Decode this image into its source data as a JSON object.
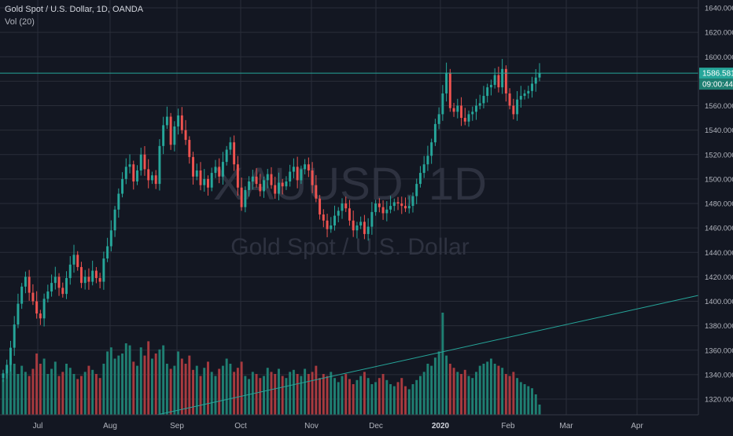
{
  "header": {
    "title": "Gold Spot / U.S. Dollar, 1D, OANDA",
    "indicator": "Vol (20)"
  },
  "watermark": {
    "symbol": "XAUUSD, 1D",
    "name": "Gold Spot / U.S. Dollar"
  },
  "price_axis": {
    "ticks": [
      "1640.000",
      "1620.000",
      "1600.000",
      "1580.000",
      "1560.000",
      "1540.000",
      "1520.000",
      "1500.000",
      "1480.000",
      "1460.000",
      "1440.000",
      "1420.000",
      "1400.000",
      "1380.000",
      "1360.000",
      "1340.000",
      "1320.000"
    ],
    "last_price": "1586.581",
    "countdown": "09:00:44"
  },
  "colors": {
    "background": "#131722",
    "up": "#26a69a",
    "down": "#ef5350",
    "up_volume": "#1f7f72",
    "down_volume": "#a83a3f",
    "grid": "#2a2e39",
    "price_line": "#26a69a",
    "trend_line": "#26a69a"
  },
  "chart_data": {
    "type": "candlestick",
    "title": "Gold Spot / U.S. Dollar, 1D, OANDA",
    "symbol": "XAUUSD",
    "interval": "1D",
    "ylim": [
      1310,
      1650
    ],
    "x_labels": [
      "Jul",
      "Aug",
      "Sep",
      "Oct",
      "Nov",
      "Dec",
      "2020",
      "Feb",
      "Mar",
      "Apr"
    ],
    "last_price": 1586.581,
    "grid": true,
    "candles_close": [
      1341,
      1348,
      1362,
      1381,
      1398,
      1412,
      1420,
      1407,
      1400,
      1390,
      1386,
      1402,
      1408,
      1415,
      1420,
      1411,
      1406,
      1419,
      1430,
      1438,
      1428,
      1415,
      1420,
      1416,
      1425,
      1419,
      1416,
      1435,
      1445,
      1458,
      1475,
      1488,
      1500,
      1510,
      1512,
      1498,
      1507,
      1520,
      1508,
      1499,
      1503,
      1496,
      1527,
      1544,
      1551,
      1528,
      1543,
      1552,
      1540,
      1532,
      1518,
      1502,
      1507,
      1495,
      1500,
      1493,
      1505,
      1510,
      1502,
      1514,
      1524,
      1530,
      1512,
      1493,
      1477,
      1491,
      1498,
      1502,
      1496,
      1490,
      1499,
      1504,
      1495,
      1488,
      1497,
      1494,
      1498,
      1506,
      1510,
      1499,
      1508,
      1512,
      1507,
      1495,
      1484,
      1471,
      1466,
      1459,
      1462,
      1470,
      1474,
      1480,
      1476,
      1466,
      1458,
      1462,
      1465,
      1455,
      1461,
      1473,
      1480,
      1477,
      1472,
      1475,
      1478,
      1481,
      1480,
      1478,
      1476,
      1478,
      1486,
      1496,
      1505,
      1512,
      1519,
      1530,
      1545,
      1553,
      1570,
      1587,
      1558,
      1555,
      1560,
      1550,
      1547,
      1553,
      1555,
      1560,
      1562,
      1568,
      1575,
      1577,
      1585,
      1575,
      1590,
      1570,
      1560,
      1553,
      1565,
      1568,
      1570,
      1572,
      1578,
      1583,
      1586.581
    ],
    "volume_relative": [
      0.35,
      0.45,
      0.55,
      0.5,
      0.4,
      0.48,
      0.42,
      0.38,
      0.45,
      0.6,
      0.5,
      0.55,
      0.4,
      0.45,
      0.52,
      0.38,
      0.42,
      0.5,
      0.46,
      0.4,
      0.35,
      0.38,
      0.42,
      0.48,
      0.44,
      0.4,
      0.36,
      0.5,
      0.62,
      0.66,
      0.55,
      0.58,
      0.6,
      0.7,
      0.68,
      0.52,
      0.48,
      0.66,
      0.58,
      0.72,
      0.55,
      0.6,
      0.64,
      0.68,
      0.5,
      0.45,
      0.48,
      0.62,
      0.55,
      0.5,
      0.58,
      0.44,
      0.48,
      0.38,
      0.46,
      0.52,
      0.42,
      0.38,
      0.45,
      0.48,
      0.55,
      0.5,
      0.42,
      0.46,
      0.52,
      0.38,
      0.35,
      0.42,
      0.4,
      0.36,
      0.38,
      0.46,
      0.42,
      0.4,
      0.45,
      0.38,
      0.36,
      0.42,
      0.44,
      0.4,
      0.38,
      0.45,
      0.4,
      0.42,
      0.48,
      0.36,
      0.4,
      0.38,
      0.42,
      0.36,
      0.32,
      0.38,
      0.4,
      0.35,
      0.3,
      0.34,
      0.38,
      0.42,
      0.36,
      0.3,
      0.32,
      0.36,
      0.4,
      0.34,
      0.3,
      0.28,
      0.32,
      0.36,
      0.28,
      0.25,
      0.3,
      0.34,
      0.38,
      0.42,
      0.5,
      0.48,
      0.56,
      0.62,
      1.0,
      0.58,
      0.5,
      0.46,
      0.42,
      0.4,
      0.44,
      0.38,
      0.36,
      0.42,
      0.48,
      0.5,
      0.52,
      0.55,
      0.5,
      0.48,
      0.46,
      0.4,
      0.38,
      0.42,
      0.36,
      0.32,
      0.3,
      0.28,
      0.26,
      0.2,
      0.1
    ]
  }
}
